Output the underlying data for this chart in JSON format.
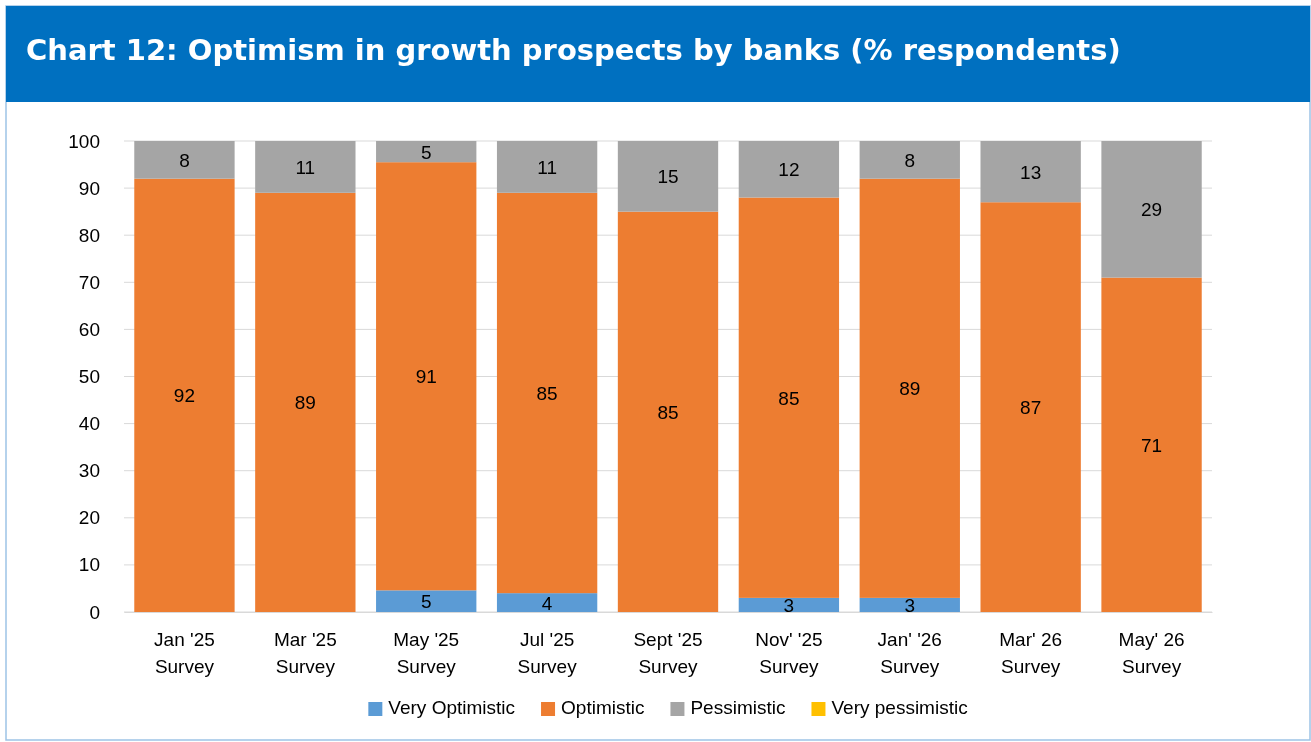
{
  "chart_data": {
    "type": "bar",
    "title": "Chart 12: Optimism in growth prospects by banks (% respondents)",
    "categories": [
      "Jan '25\nSurvey",
      "Mar '25\nSurvey",
      "May '25\nSurvey",
      "Jul '25\nSurvey",
      "Sept '25\nSurvey",
      "Nov' '25\nSurvey",
      "Jan' '26\nSurvey",
      "Mar' 26\nSurvey",
      "May' 26\nSurvey"
    ],
    "stacked": true,
    "ylim": [
      0,
      100
    ],
    "yticks": [
      0,
      10,
      20,
      30,
      40,
      50,
      60,
      70,
      80,
      90,
      100
    ],
    "grid": "y",
    "legend": "bottom",
    "series": [
      {
        "name": "Very Optimistic",
        "color": "#5b9bd5",
        "values": [
          0,
          0,
          4.6,
          4,
          0,
          3,
          3,
          0,
          0
        ],
        "value_labels": [
          null,
          null,
          "5",
          "4",
          null,
          "3",
          "3",
          null,
          null
        ]
      },
      {
        "name": "Optimistic",
        "color": "#ed7d31",
        "values": [
          92,
          89,
          90.9,
          85,
          85,
          85,
          89,
          87,
          71
        ],
        "value_labels": [
          "92",
          "89",
          "91",
          "85",
          "85",
          "85",
          "89",
          "87",
          "71"
        ]
      },
      {
        "name": "Pessimistic",
        "color": "#a5a5a5",
        "values": [
          8,
          11,
          4.5,
          11,
          15,
          12,
          8,
          13,
          29
        ],
        "value_labels": [
          "8",
          "11",
          "5",
          "11",
          "15",
          "12",
          "8",
          "13",
          "29"
        ]
      },
      {
        "name": "Very pessimistic",
        "color": "#ffc000",
        "values": [
          0,
          0,
          0,
          0,
          0,
          0,
          0,
          0,
          0
        ],
        "value_labels": [
          null,
          null,
          null,
          null,
          null,
          null,
          null,
          null,
          null
        ]
      }
    ]
  }
}
